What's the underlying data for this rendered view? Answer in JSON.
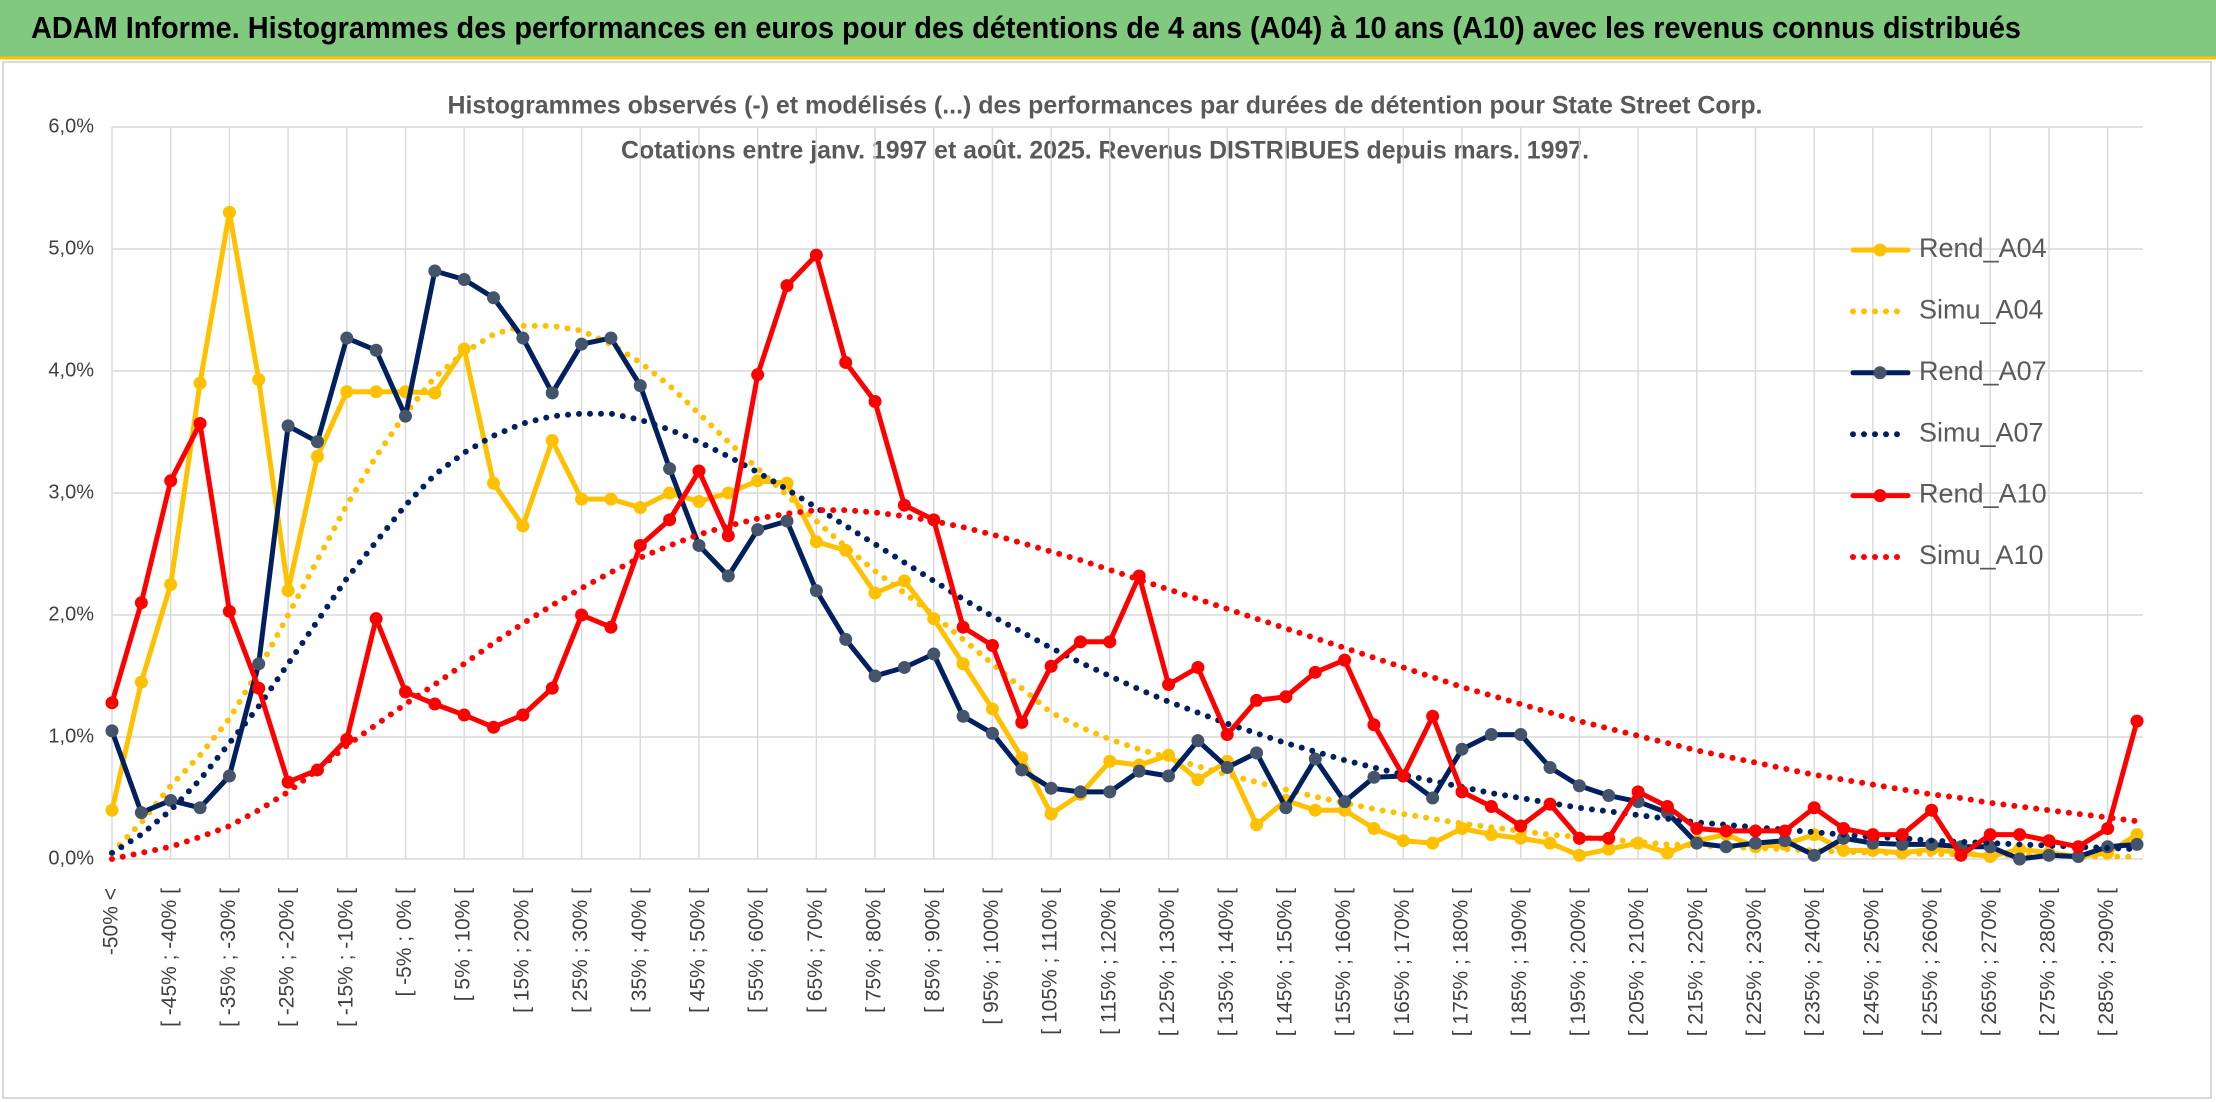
{
  "header": {
    "title": "ADAM Informe. Histogrammes des performances en euros pour des détentions de 4 ans (A04) à 10 ans (A10) avec les revenus connus distribués"
  },
  "chart_data": {
    "type": "line",
    "title": "Histogrammes observés (-) et modélisés (...) des performances par durées de détention pour State Street Corp.",
    "subtitle": "Cotations entre janv. 1997 et août. 2025. Revenus DISTRIBUES depuis mars. 1997.",
    "categories": [
      "-50% <",
      null,
      "[ -45% ; -40% [",
      null,
      "[ -35% ; -30% [",
      null,
      "[ -25% ; -20% [",
      null,
      "[ -15% ; -10% [",
      null,
      "[ -5% ; 0% [",
      null,
      "[ 5% ; 10% [",
      null,
      "[ 15% ; 20% [",
      null,
      "[ 25% ; 30% [",
      null,
      "[ 35% ; 40% [",
      null,
      "[ 45% ; 50% [",
      null,
      "[ 55% ; 60% [",
      null,
      "[ 65% ; 70% [",
      null,
      "[ 75% ; 80% [",
      null,
      "[ 85% ; 90% [",
      null,
      "[ 95% ; 100% [",
      null,
      "[ 105% ; 110% [",
      null,
      "[ 115% ; 120% [",
      null,
      "[ 125% ; 130% [",
      null,
      "[ 135% ; 140% [",
      null,
      "[ 145% ; 150% [",
      null,
      "[ 155% ; 160% [",
      null,
      "[ 165% ; 170% [",
      null,
      "[ 175% ; 180% [",
      null,
      "[ 185% ; 190% [",
      null,
      "[ 195% ; 200% [",
      null,
      "[ 205% ; 210% [",
      null,
      "[ 215% ; 220% [",
      null,
      "[ 225% ; 230% [",
      null,
      "[ 235% ; 240% [",
      null,
      "[ 245% ; 250% [",
      null,
      "[ 255% ; 260% [",
      null,
      "[ 265% ; 270% [",
      null,
      "[ 275% ; 280% [",
      null,
      "[ 285% ; 290% [",
      null
    ],
    "ylim": [
      0,
      6
    ],
    "yticks": [
      {
        "value": 0,
        "label": "0,0%"
      },
      {
        "value": 1,
        "label": "1,0%"
      },
      {
        "value": 2,
        "label": "2,0%"
      },
      {
        "value": 3,
        "label": "3,0%"
      },
      {
        "value": 4,
        "label": "4,0%"
      },
      {
        "value": 5,
        "label": "5,0%"
      },
      {
        "value": 6,
        "label": "6,0%"
      }
    ],
    "grid": true,
    "legend": "right",
    "series": [
      {
        "name": "Rend_A04",
        "color": "#ffc000",
        "line_style": "solid",
        "markers": true,
        "values": [
          0.4,
          1.45,
          2.25,
          3.9,
          5.3,
          3.93,
          2.2,
          3.3,
          3.83,
          3.83,
          3.83,
          3.82,
          4.18,
          3.08,
          2.73,
          3.43,
          2.95,
          2.95,
          2.88,
          3.0,
          2.93,
          3.0,
          3.1,
          3.08,
          2.6,
          2.53,
          2.18,
          2.28,
          1.97,
          1.6,
          1.23,
          0.83,
          0.37,
          0.53,
          0.8,
          0.77,
          0.85,
          0.65,
          0.8,
          0.28,
          0.48,
          0.4,
          0.4,
          0.25,
          0.15,
          0.13,
          0.25,
          0.2,
          0.17,
          0.13,
          0.03,
          0.08,
          0.13,
          0.05,
          0.15,
          0.2,
          0.1,
          0.12,
          0.2,
          0.07,
          0.07,
          0.05,
          0.08,
          0.05,
          0.02,
          0.08,
          0.05,
          0.02,
          0.05,
          0.2
        ]
      },
      {
        "name": "Simu_A04",
        "color": "#ffc000",
        "line_style": "dotted",
        "markers": false,
        "values": [
          0.05,
          0.3,
          0.6,
          0.85,
          1.15,
          1.55,
          2.0,
          2.45,
          2.9,
          3.3,
          3.65,
          3.95,
          4.15,
          4.3,
          4.37,
          4.37,
          4.33,
          4.22,
          4.07,
          3.88,
          3.65,
          3.42,
          3.2,
          2.98,
          2.77,
          2.56,
          2.36,
          2.18,
          2.0,
          1.8,
          1.6,
          1.4,
          1.2,
          1.08,
          0.98,
          0.9,
          0.83,
          0.76,
          0.69,
          0.63,
          0.57,
          0.51,
          0.46,
          0.41,
          0.37,
          0.33,
          0.29,
          0.26,
          0.23,
          0.2,
          0.18,
          0.16,
          0.14,
          0.12,
          0.11,
          0.1,
          0.09,
          0.08,
          0.07,
          0.06,
          0.05,
          0.05,
          0.04,
          0.04,
          0.03,
          0.03,
          0.03,
          0.02,
          0.02,
          0.02
        ]
      },
      {
        "name": "Rend_A07",
        "color": "#002060",
        "line_style": "solid",
        "markers": true,
        "values": [
          1.05,
          0.38,
          0.48,
          0.42,
          0.68,
          1.6,
          3.55,
          3.42,
          4.27,
          4.17,
          3.63,
          4.82,
          4.75,
          4.6,
          4.27,
          3.82,
          4.22,
          4.27,
          3.88,
          3.2,
          2.57,
          2.32,
          2.7,
          2.77,
          2.2,
          1.8,
          1.5,
          1.57,
          1.68,
          1.17,
          1.03,
          0.73,
          0.58,
          0.55,
          0.55,
          0.72,
          0.68,
          0.97,
          0.75,
          0.87,
          0.42,
          0.82,
          0.47,
          0.67,
          0.68,
          0.5,
          0.9,
          1.02,
          1.02,
          0.75,
          0.6,
          0.52,
          0.47,
          0.38,
          0.13,
          0.1,
          0.13,
          0.15,
          0.03,
          0.17,
          0.13,
          0.12,
          0.12,
          0.1,
          0.1,
          0.0,
          0.03,
          0.02,
          0.1,
          0.12
        ]
      },
      {
        "name": "Simu_A07",
        "color": "#002060",
        "line_style": "dotted",
        "markers": false,
        "values": [
          0.05,
          0.2,
          0.4,
          0.65,
          0.95,
          1.25,
          1.6,
          1.95,
          2.3,
          2.6,
          2.9,
          3.15,
          3.33,
          3.47,
          3.57,
          3.63,
          3.65,
          3.65,
          3.6,
          3.52,
          3.42,
          3.3,
          3.17,
          3.03,
          2.88,
          2.73,
          2.58,
          2.43,
          2.28,
          2.13,
          1.99,
          1.86,
          1.73,
          1.61,
          1.5,
          1.39,
          1.29,
          1.2,
          1.11,
          1.03,
          0.95,
          0.88,
          0.81,
          0.75,
          0.69,
          0.64,
          0.59,
          0.54,
          0.5,
          0.46,
          0.42,
          0.39,
          0.36,
          0.33,
          0.3,
          0.28,
          0.26,
          0.24,
          0.22,
          0.2,
          0.18,
          0.17,
          0.15,
          0.14,
          0.13,
          0.12,
          0.11,
          0.1,
          0.09,
          0.08
        ]
      },
      {
        "name": "Rend_A10",
        "color": "#ff0000",
        "line_style": "solid",
        "markers": true,
        "values": [
          1.28,
          2.1,
          3.1,
          3.57,
          2.03,
          1.4,
          0.63,
          0.73,
          0.98,
          1.97,
          1.37,
          1.27,
          1.18,
          1.08,
          1.18,
          1.4,
          2.0,
          1.9,
          2.57,
          2.78,
          3.18,
          2.65,
          3.97,
          4.7,
          4.95,
          4.07,
          3.75,
          2.9,
          2.78,
          1.9,
          1.75,
          1.12,
          1.58,
          1.78,
          1.78,
          2.32,
          1.43,
          1.57,
          1.02,
          1.3,
          1.33,
          1.53,
          1.63,
          1.1,
          0.68,
          1.17,
          0.55,
          0.43,
          0.27,
          0.45,
          0.17,
          0.17,
          0.55,
          0.43,
          0.25,
          0.23,
          0.23,
          0.23,
          0.42,
          0.25,
          0.2,
          0.2,
          0.4,
          0.03,
          0.2,
          0.2,
          0.15,
          0.1,
          0.25,
          1.13
        ]
      },
      {
        "name": "Simu_A10",
        "color": "#ff0000",
        "line_style": "dotted",
        "markers": false,
        "values": [
          0.0,
          0.05,
          0.1,
          0.18,
          0.27,
          0.4,
          0.55,
          0.73,
          0.93,
          1.1,
          1.27,
          1.43,
          1.6,
          1.77,
          1.93,
          2.08,
          2.22,
          2.35,
          2.47,
          2.57,
          2.66,
          2.73,
          2.79,
          2.83,
          2.86,
          2.86,
          2.84,
          2.81,
          2.77,
          2.72,
          2.66,
          2.59,
          2.52,
          2.45,
          2.37,
          2.29,
          2.21,
          2.13,
          2.05,
          1.97,
          1.89,
          1.81,
          1.73,
          1.65,
          1.57,
          1.49,
          1.41,
          1.34,
          1.27,
          1.2,
          1.13,
          1.07,
          1.01,
          0.95,
          0.89,
          0.84,
          0.79,
          0.74,
          0.69,
          0.65,
          0.61,
          0.57,
          0.53,
          0.5,
          0.46,
          0.43,
          0.4,
          0.37,
          0.34,
          0.31
        ]
      }
    ]
  }
}
